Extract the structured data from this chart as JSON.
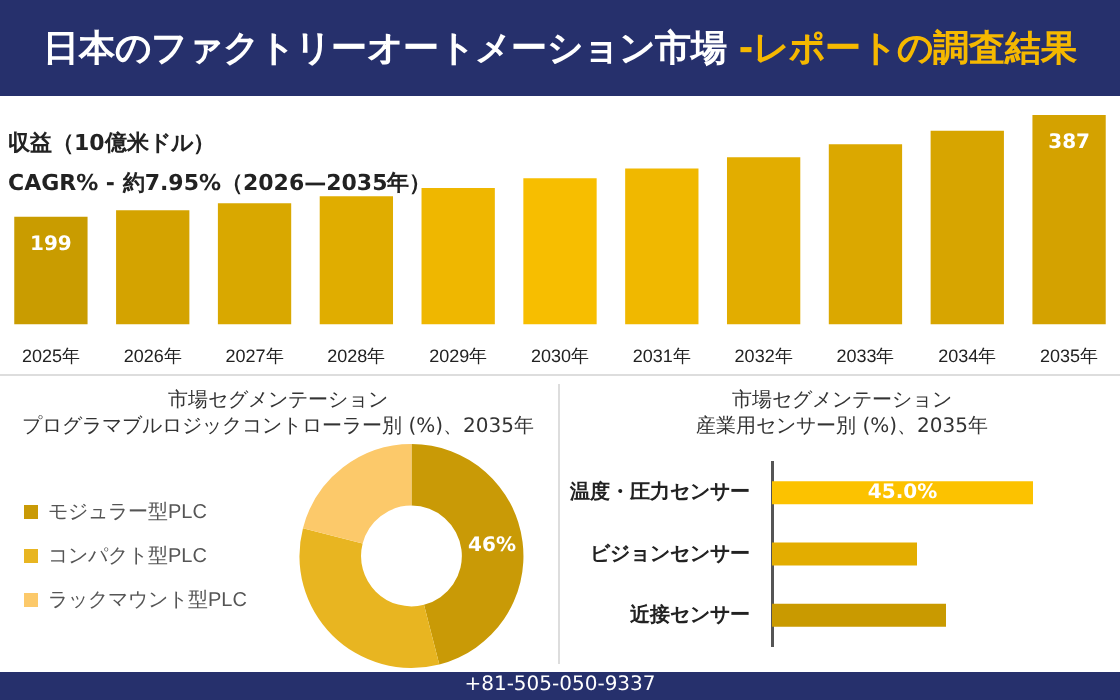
{
  "chart_data": [
    {
      "type": "bar",
      "title": "日本のファクトリーオートメーション市場",
      "subtitle": "-レポートの調査結果",
      "annotations": [
        "収益（10億米ドル）",
        "CAGR% - 約7.95%（2026—2035年）"
      ],
      "categories": [
        "2025年",
        "2026年",
        "2027年",
        "2028年",
        "2029年",
        "2030年",
        "2031年",
        "2032年",
        "2033年",
        "2034年",
        "2035年"
      ],
      "values": [
        199,
        211,
        224,
        237,
        252,
        270,
        288,
        309,
        333,
        358,
        387
      ],
      "value_labels": [
        "199",
        null,
        null,
        null,
        null,
        null,
        null,
        null,
        null,
        null,
        "387"
      ],
      "colors": [
        "#c99c00",
        "#d4a300",
        "#d9a800",
        "#e0ad00",
        "#efb700",
        "#f7be00",
        "#f0b800",
        "#e2ad00",
        "#dba800",
        "#d7a500",
        "#d4a200"
      ],
      "legend": false
    },
    {
      "type": "donut",
      "title": "市場セグメンテーション",
      "subtitle": "プログラマブルロジックコントローラー別 (%)、2035年",
      "categories": [
        "モジュラー型PLC",
        "コンパクト型PLC",
        "ラックマウント型PLC"
      ],
      "values": [
        46,
        33,
        21
      ],
      "value_labels": [
        "46%",
        null,
        null
      ],
      "colors": [
        "#c99a06",
        "#e8b521",
        "#fcc96a"
      ],
      "legend": "left"
    },
    {
      "type": "bar",
      "orientation": "horizontal",
      "title": "市場セグメンテーション",
      "subtitle": "産業用センサー別 (%)、2035年",
      "annotations": [
        "+81-505-050-9337"
      ],
      "categories": [
        "温度・圧力センサー",
        "ビジョンセンサー",
        "近接センサー"
      ],
      "values": [
        45,
        25,
        30
      ],
      "value_labels": [
        "45.0%",
        null,
        null
      ],
      "colors": [
        "#fcc200",
        "#e3ad00",
        "#c99a00"
      ],
      "legend": false
    }
  ]
}
